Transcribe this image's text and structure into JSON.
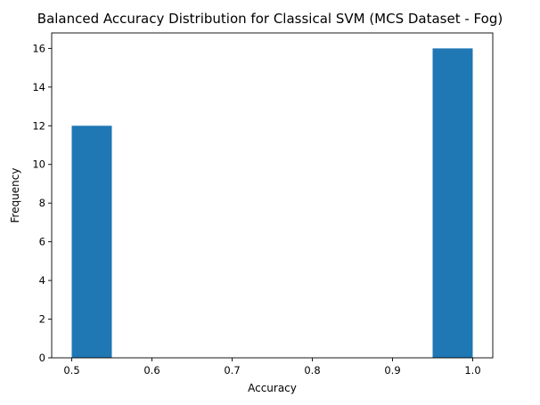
{
  "chart_data": {
    "type": "bar",
    "title": "Balanced Accuracy Distribution for Classical SVM  (MCS Dataset - Fog)",
    "xlabel": "Accuracy",
    "ylabel": "Frequency",
    "bins": [
      {
        "start": 0.5,
        "end": 0.55,
        "value": 12
      },
      {
        "start": 0.55,
        "end": 0.6,
        "value": 0
      },
      {
        "start": 0.6,
        "end": 0.65,
        "value": 0
      },
      {
        "start": 0.65,
        "end": 0.7,
        "value": 0
      },
      {
        "start": 0.7,
        "end": 0.75,
        "value": 0
      },
      {
        "start": 0.75,
        "end": 0.8,
        "value": 0
      },
      {
        "start": 0.8,
        "end": 0.85,
        "value": 0
      },
      {
        "start": 0.85,
        "end": 0.9,
        "value": 0
      },
      {
        "start": 0.9,
        "end": 0.95,
        "value": 0
      },
      {
        "start": 0.95,
        "end": 1.0,
        "value": 16
      }
    ],
    "xlim": [
      0.475,
      1.025
    ],
    "ylim": [
      0,
      16.8
    ],
    "xticks": [
      "0.5",
      "0.6",
      "0.7",
      "0.8",
      "0.9",
      "1.0"
    ],
    "yticks": [
      "0",
      "2",
      "4",
      "6",
      "8",
      "10",
      "12",
      "14",
      "16"
    ],
    "bar_color": "#1f77b4",
    "grid": false,
    "legend": "none"
  }
}
